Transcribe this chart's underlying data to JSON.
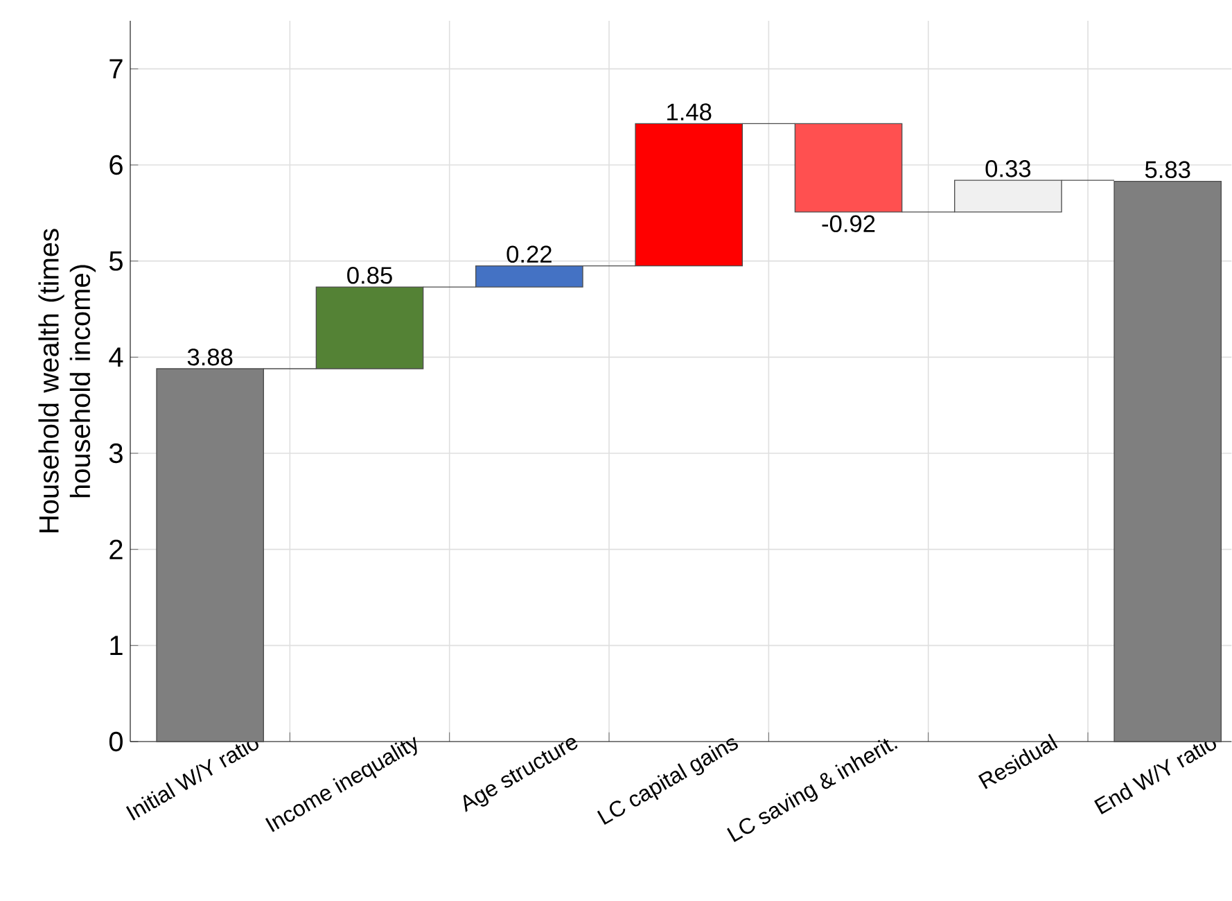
{
  "chart_data": {
    "type": "bar",
    "ylabel": "Household wealth (times household income)",
    "categories": [
      "Initial W/Y ratio",
      "Income inequality",
      "Age structure",
      "LC capital gains",
      "LC saving & inherit.",
      "Residual",
      "End W/Y ratio"
    ],
    "values": [
      3.88,
      0.85,
      0.22,
      1.48,
      -0.92,
      0.33,
      5.83
    ],
    "base": [
      0,
      3.88,
      4.73,
      4.95,
      6.43,
      5.51,
      0
    ],
    "colors": [
      "#7f7f7f",
      "#548235",
      "#4472c4",
      "#ff0000",
      "#ff5050",
      "#f0f0f0",
      "#7f7f7f"
    ],
    "ylim": [
      0,
      7.5
    ],
    "yticks": [
      0,
      1,
      2,
      3,
      4,
      5,
      6,
      7
    ],
    "data_labels": true,
    "grid": true
  }
}
